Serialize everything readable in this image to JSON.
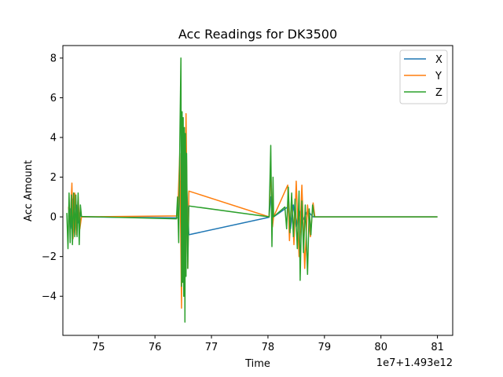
{
  "chart_data": {
    "type": "line",
    "title": "Acc Readings for DK3500",
    "xlabel": "Time",
    "ylabel": "Acc Amount",
    "x_offset_label": "1e7+1.493e12",
    "xlim": [
      74.37,
      81.27
    ],
    "ylim": [
      -5.97,
      8.63
    ],
    "x_ticks": [
      75,
      76,
      77,
      78,
      79,
      80,
      81
    ],
    "y_ticks": [
      -4,
      -2,
      0,
      2,
      4,
      6,
      8
    ],
    "grid": false,
    "legend_position": "top-right",
    "series": [
      {
        "name": "X",
        "color": "#1f77b4",
        "points": [
          [
            74.47,
            0.0
          ],
          [
            74.5,
            0.4
          ],
          [
            74.53,
            -0.6
          ],
          [
            74.55,
            0.9
          ],
          [
            74.58,
            -0.8
          ],
          [
            74.61,
            0.6
          ],
          [
            74.64,
            -0.3
          ],
          [
            74.67,
            0.2
          ],
          [
            74.7,
            0.0
          ],
          [
            76.42,
            -0.05
          ],
          [
            76.45,
            1.8
          ],
          [
            76.48,
            -2.6
          ],
          [
            76.5,
            3.0
          ],
          [
            76.53,
            -2.2
          ],
          [
            76.56,
            1.6
          ],
          [
            76.6,
            -0.9
          ],
          [
            78.02,
            -0.02
          ],
          [
            78.05,
            1.0
          ],
          [
            78.1,
            0.0
          ],
          [
            78.35,
            0.5
          ],
          [
            78.4,
            -0.6
          ],
          [
            78.45,
            0.6
          ],
          [
            78.5,
            -0.5
          ],
          [
            78.55,
            0.4
          ],
          [
            78.6,
            -0.3
          ],
          [
            78.7,
            0.3
          ],
          [
            78.8,
            0.0
          ],
          [
            81.0,
            0.0
          ]
        ]
      },
      {
        "name": "Y",
        "color": "#ff7f0e",
        "points": [
          [
            74.47,
            0.5
          ],
          [
            74.5,
            -0.4
          ],
          [
            74.53,
            1.7
          ],
          [
            74.55,
            -1.1
          ],
          [
            74.58,
            1.2
          ],
          [
            74.61,
            -0.9
          ],
          [
            74.64,
            1.0
          ],
          [
            74.67,
            -0.6
          ],
          [
            74.7,
            0.0
          ],
          [
            76.4,
            0.05
          ],
          [
            76.44,
            3.2
          ],
          [
            76.47,
            -4.6
          ],
          [
            76.49,
            4.8
          ],
          [
            76.52,
            -4.0
          ],
          [
            76.55,
            5.2
          ],
          [
            76.58,
            -2.6
          ],
          [
            76.6,
            1.3
          ],
          [
            78.02,
            0.0
          ],
          [
            78.05,
            2.5
          ],
          [
            78.08,
            -0.5
          ],
          [
            78.1,
            0.0
          ],
          [
            78.35,
            1.6
          ],
          [
            78.38,
            -1.2
          ],
          [
            78.42,
            1.0
          ],
          [
            78.46,
            -1.4
          ],
          [
            78.5,
            1.8
          ],
          [
            78.55,
            -2.0
          ],
          [
            78.6,
            1.6
          ],
          [
            78.65,
            -2.6
          ],
          [
            78.7,
            0.6
          ],
          [
            78.75,
            -1.0
          ],
          [
            78.8,
            0.7
          ],
          [
            78.83,
            0.0
          ],
          [
            81.0,
            0.0
          ]
        ]
      },
      {
        "name": "Z",
        "color": "#2ca02c",
        "points": [
          [
            74.44,
            0.2
          ],
          [
            74.46,
            -1.6
          ],
          [
            74.48,
            1.2
          ],
          [
            74.5,
            -1.3
          ],
          [
            74.52,
            1.1
          ],
          [
            74.54,
            -1.4
          ],
          [
            74.56,
            1.2
          ],
          [
            74.58,
            -1.0
          ],
          [
            74.6,
            1.1
          ],
          [
            74.62,
            -1.0
          ],
          [
            74.64,
            1.2
          ],
          [
            74.66,
            -1.4
          ],
          [
            74.68,
            0.6
          ],
          [
            74.7,
            0.02
          ],
          [
            76.38,
            -0.1
          ],
          [
            76.4,
            1.0
          ],
          [
            76.42,
            -1.3
          ],
          [
            76.44,
            3.8
          ],
          [
            76.46,
            8.0
          ],
          [
            76.47,
            -3.5
          ],
          [
            76.48,
            5.3
          ],
          [
            76.49,
            -3.3
          ],
          [
            76.5,
            5.0
          ],
          [
            76.51,
            -4.0
          ],
          [
            76.52,
            4.5
          ],
          [
            76.53,
            -5.3
          ],
          [
            76.54,
            4.2
          ],
          [
            76.55,
            -3.0
          ],
          [
            76.56,
            3.2
          ],
          [
            76.58,
            -2.6
          ],
          [
            76.6,
            0.55
          ],
          [
            78.02,
            0.0
          ],
          [
            78.05,
            3.6
          ],
          [
            78.07,
            -1.5
          ],
          [
            78.09,
            2.0
          ],
          [
            78.1,
            0.0
          ],
          [
            78.3,
            0.5
          ],
          [
            78.33,
            -0.6
          ],
          [
            78.36,
            1.5
          ],
          [
            78.39,
            -0.8
          ],
          [
            78.42,
            1.2
          ],
          [
            78.45,
            -1.0
          ],
          [
            78.48,
            0.9
          ],
          [
            78.52,
            -1.6
          ],
          [
            78.55,
            1.3
          ],
          [
            78.57,
            -3.2
          ],
          [
            78.6,
            0.8
          ],
          [
            78.63,
            -1.8
          ],
          [
            78.66,
            0.6
          ],
          [
            78.7,
            -2.9
          ],
          [
            78.73,
            0.4
          ],
          [
            78.76,
            -0.9
          ],
          [
            78.79,
            0.6
          ],
          [
            78.82,
            0.0
          ],
          [
            81.0,
            0.0
          ]
        ]
      }
    ]
  }
}
